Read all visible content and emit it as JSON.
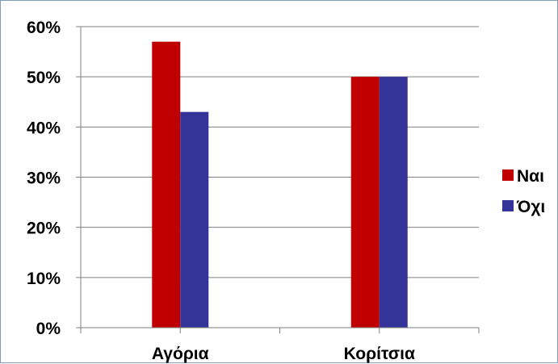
{
  "chart_data": {
    "type": "bar",
    "categories": [
      "Αγόρια",
      "Κορίτσια"
    ],
    "series": [
      {
        "name": "Ναι",
        "values": [
          0.57,
          0.5
        ],
        "color": "#c00000"
      },
      {
        "name": "Όχι",
        "values": [
          0.43,
          0.5
        ],
        "color": "#333399"
      }
    ],
    "ylim": [
      0,
      0.6
    ],
    "yticks": [
      {
        "value": 0.0,
        "label": "0%"
      },
      {
        "value": 0.1,
        "label": "10%"
      },
      {
        "value": 0.2,
        "label": "20%"
      },
      {
        "value": 0.3,
        "label": "30%"
      },
      {
        "value": 0.4,
        "label": "40%"
      },
      {
        "value": 0.5,
        "label": "50%"
      },
      {
        "value": 0.6,
        "label": "60%"
      }
    ],
    "grid": true,
    "legend_position": "right",
    "title": "",
    "xlabel": "",
    "ylabel": ""
  }
}
